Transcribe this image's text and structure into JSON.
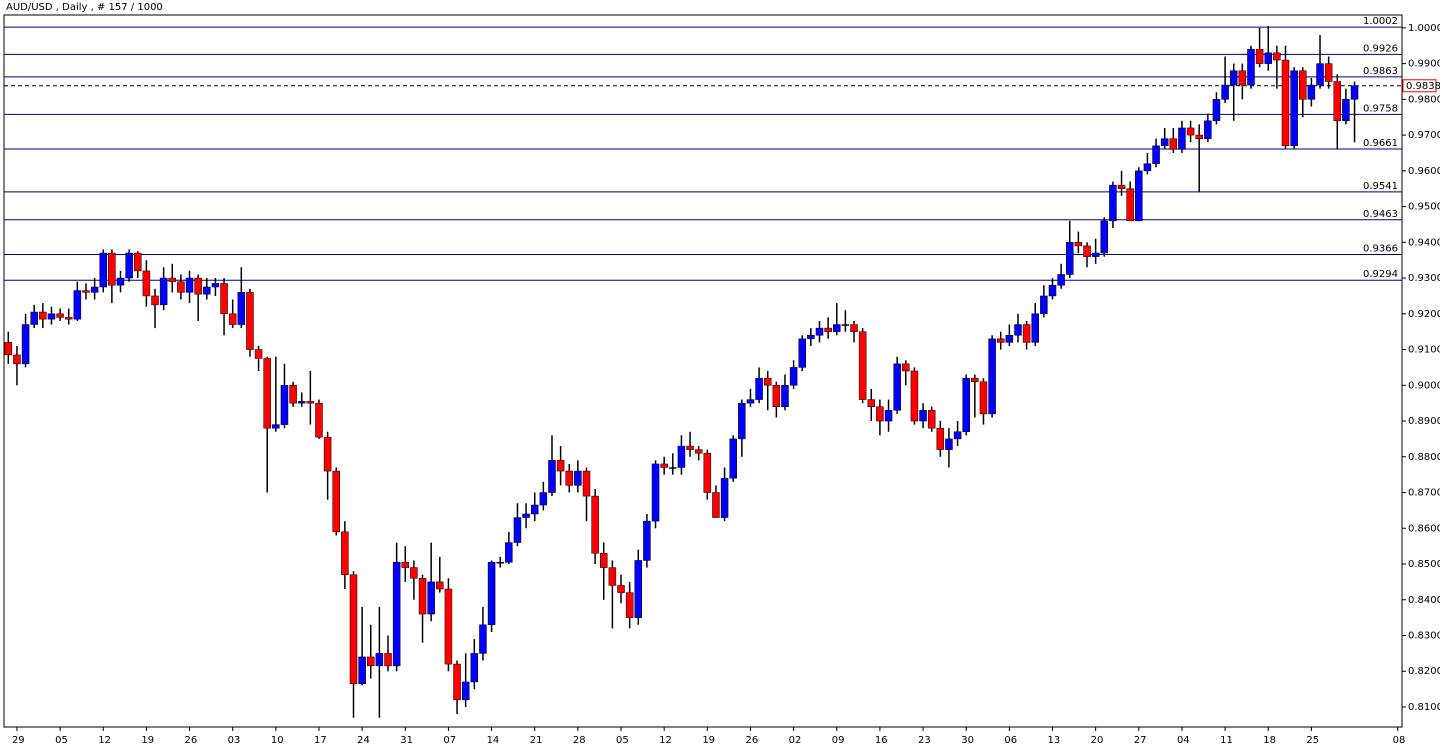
{
  "chart_data": {
    "type": "candlestick",
    "title": "AUD/USD , Daily , # 157 / 1000",
    "categories": [
      null,
      "29",
      null,
      null,
      null,
      null,
      "05",
      null,
      null,
      null,
      null,
      "12",
      null,
      null,
      null,
      null,
      "19",
      null,
      null,
      null,
      null,
      "26",
      null,
      null,
      null,
      null,
      "03",
      null,
      null,
      null,
      null,
      "10",
      null,
      null,
      null,
      null,
      "17",
      null,
      null,
      null,
      null,
      "24",
      null,
      null,
      null,
      null,
      "31",
      null,
      null,
      null,
      null,
      "07",
      null,
      null,
      null,
      null,
      "14",
      null,
      null,
      null,
      null,
      "21",
      null,
      null,
      null,
      null,
      "28",
      null,
      null,
      null,
      null,
      "05",
      null,
      null,
      null,
      null,
      "12",
      null,
      null,
      null,
      null,
      "19",
      null,
      null,
      null,
      null,
      "26",
      null,
      null,
      null,
      null,
      "02",
      null,
      null,
      null,
      null,
      "09",
      null,
      null,
      null,
      null,
      "16",
      null,
      null,
      null,
      null,
      "23",
      null,
      null,
      null,
      null,
      "30",
      null,
      null,
      null,
      null,
      "06",
      null,
      null,
      null,
      null,
      "13",
      null,
      null,
      null,
      null,
      "20",
      null,
      null,
      null,
      null,
      "27",
      null,
      null,
      null,
      null,
      "04",
      null,
      null,
      null,
      null,
      "11",
      null,
      null,
      null,
      null,
      "18",
      null,
      null,
      null,
      null,
      "25",
      null,
      null,
      null,
      null,
      null,
      null,
      null,
      null,
      null,
      "08"
    ],
    "open": [
      0.912,
      0.9085,
      0.906,
      0.917,
      0.9205,
      0.9185,
      0.92,
      0.919,
      0.9185,
      0.9265,
      0.926,
      0.9275,
      0.937,
      0.928,
      0.93,
      0.937,
      0.932,
      0.925,
      0.9225,
      0.93,
      0.929,
      0.926,
      0.93,
      0.9255,
      0.9275,
      0.9285,
      0.92,
      0.917,
      0.926,
      0.91,
      0.9075,
      0.888,
      0.889,
      0.9,
      0.895,
      0.8955,
      0.895,
      0.8855,
      0.876,
      0.859,
      0.847,
      0.8165,
      0.824,
      0.8215,
      0.825,
      0.8215,
      0.8505,
      0.849,
      0.846,
      0.836,
      0.845,
      0.843,
      0.822,
      0.812,
      0.817,
      0.825,
      0.833,
      0.8505,
      0.8505,
      0.856,
      0.863,
      0.864,
      0.8665,
      0.87,
      0.879,
      0.876,
      0.872,
      0.876,
      0.869,
      0.853,
      0.849,
      0.844,
      0.842,
      0.835,
      0.851,
      0.862,
      0.878,
      0.877,
      0.877,
      0.883,
      0.882,
      0.881,
      0.87,
      0.863,
      0.874,
      0.885,
      0.895,
      0.896,
      0.902,
      0.9,
      0.894,
      0.9,
      0.905,
      0.913,
      0.914,
      0.916,
      0.915,
      0.917,
      0.917,
      0.915,
      0.896,
      0.894,
      0.89,
      0.893,
      0.906,
      0.904,
      0.89,
      0.893,
      0.888,
      0.882,
      0.885,
      0.887,
      0.902,
      0.901,
      0.892,
      0.913,
      0.912,
      0.914,
      0.917,
      0.912,
      0.92,
      0.925,
      0.928,
      0.931,
      0.94,
      0.939,
      0.936,
      0.937,
      0.946,
      0.956,
      0.955,
      0.946,
      0.96,
      0.962,
      0.967,
      0.969,
      0.966,
      0.972,
      0.97,
      0.969,
      0.974,
      0.98,
      0.984,
      0.988,
      0.984,
      0.994,
      0.99,
      0.993,
      0.991,
      0.967,
      0.988,
      0.98,
      0.984,
      0.99,
      0.985,
      0.974,
      0.98,
      null,
      null,
      null,
      null,
      null
    ],
    "high": [
      0.915,
      0.911,
      0.92,
      0.9225,
      0.923,
      0.922,
      0.9215,
      0.9215,
      0.929,
      0.9285,
      0.93,
      0.938,
      0.938,
      0.932,
      0.938,
      0.9375,
      0.935,
      0.927,
      0.933,
      0.934,
      0.931,
      0.932,
      0.931,
      0.93,
      0.93,
      0.93,
      0.924,
      0.933,
      0.927,
      0.911,
      0.908,
      0.908,
      0.906,
      0.901,
      0.898,
      0.904,
      0.896,
      0.887,
      0.877,
      0.862,
      0.848,
      0.838,
      0.833,
      0.838,
      0.83,
      0.856,
      0.855,
      0.851,
      0.847,
      0.856,
      0.852,
      0.846,
      0.823,
      0.825,
      0.829,
      0.838,
      0.851,
      0.852,
      0.859,
      0.867,
      0.867,
      0.87,
      0.873,
      0.886,
      0.883,
      0.878,
      0.879,
      0.877,
      0.871,
      0.856,
      0.851,
      0.847,
      0.845,
      0.854,
      0.864,
      0.879,
      0.88,
      0.881,
      0.886,
      0.887,
      0.883,
      0.882,
      0.872,
      0.877,
      0.886,
      0.896,
      0.899,
      0.905,
      0.904,
      0.901,
      0.903,
      0.907,
      0.914,
      0.916,
      0.918,
      0.919,
      0.923,
      0.921,
      0.918,
      0.916,
      0.899,
      0.896,
      0.896,
      0.908,
      0.907,
      0.905,
      0.895,
      0.894,
      0.89,
      0.888,
      0.89,
      0.903,
      0.903,
      0.902,
      0.914,
      0.915,
      0.917,
      0.92,
      0.918,
      0.923,
      0.928,
      0.93,
      0.934,
      0.946,
      0.943,
      0.94,
      0.941,
      0.947,
      0.957,
      0.96,
      0.957,
      0.961,
      0.965,
      0.969,
      0.972,
      0.972,
      0.974,
      0.974,
      0.973,
      0.976,
      0.982,
      0.992,
      0.99,
      0.99,
      0.995,
      1.0,
      1.0005,
      0.995,
      0.995,
      0.989,
      0.989,
      0.986,
      0.998,
      0.992,
      0.987,
      0.983,
      0.985,
      null,
      null,
      null,
      null,
      null
    ],
    "low": [
      0.906,
      0.9,
      0.905,
      0.916,
      0.916,
      0.917,
      0.918,
      0.917,
      0.918,
      0.924,
      0.924,
      0.926,
      0.923,
      0.926,
      0.929,
      0.93,
      0.922,
      0.916,
      0.921,
      0.926,
      0.924,
      0.923,
      0.918,
      0.924,
      0.925,
      0.914,
      0.916,
      0.916,
      0.908,
      0.904,
      0.87,
      0.887,
      0.888,
      0.894,
      0.894,
      0.889,
      0.885,
      0.868,
      0.858,
      0.843,
      0.807,
      0.816,
      0.818,
      0.807,
      0.82,
      0.82,
      0.845,
      0.84,
      0.828,
      0.834,
      0.842,
      0.82,
      0.808,
      0.81,
      0.815,
      0.823,
      0.831,
      0.849,
      0.85,
      0.855,
      0.86,
      0.862,
      0.865,
      0.869,
      0.872,
      0.87,
      0.87,
      0.862,
      0.85,
      0.84,
      0.832,
      0.839,
      0.832,
      0.833,
      0.849,
      0.86,
      0.875,
      0.875,
      0.875,
      0.88,
      0.879,
      0.868,
      0.863,
      0.862,
      0.873,
      0.88,
      0.894,
      0.895,
      0.893,
      0.891,
      0.893,
      0.899,
      0.904,
      0.911,
      0.912,
      0.913,
      0.914,
      0.915,
      0.912,
      0.895,
      0.89,
      0.886,
      0.887,
      0.892,
      0.9,
      0.889,
      0.888,
      0.887,
      0.88,
      0.877,
      0.883,
      0.886,
      0.891,
      0.889,
      0.891,
      0.91,
      0.911,
      0.912,
      0.91,
      0.911,
      0.919,
      0.924,
      0.927,
      0.93,
      0.937,
      0.933,
      0.934,
      0.936,
      0.944,
      0.953,
      0.946,
      0.946,
      0.959,
      0.961,
      0.966,
      0.965,
      0.965,
      0.968,
      0.954,
      0.968,
      0.973,
      0.979,
      0.974,
      0.98,
      0.983,
      0.989,
      0.988,
      0.983,
      0.966,
      0.966,
      0.975,
      0.978,
      0.983,
      0.983,
      0.966,
      0.973,
      0.968,
      null,
      null,
      null,
      null,
      null
    ],
    "close": [
      0.9085,
      0.906,
      0.917,
      0.9205,
      0.9185,
      0.92,
      0.919,
      0.9185,
      0.9265,
      0.926,
      0.9275,
      0.937,
      0.928,
      0.93,
      0.937,
      0.932,
      0.925,
      0.9225,
      0.93,
      0.929,
      0.926,
      0.93,
      0.9255,
      0.9275,
      0.9285,
      0.92,
      0.917,
      0.926,
      0.91,
      0.9075,
      0.888,
      0.889,
      0.9,
      0.895,
      0.8955,
      0.895,
      0.8855,
      0.876,
      0.859,
      0.847,
      0.8165,
      0.824,
      0.8215,
      0.825,
      0.8215,
      0.8505,
      0.849,
      0.846,
      0.836,
      0.845,
      0.843,
      0.822,
      0.812,
      0.817,
      0.825,
      0.833,
      0.8505,
      0.8505,
      0.856,
      0.863,
      0.864,
      0.8665,
      0.87,
      0.879,
      0.876,
      0.872,
      0.876,
      0.869,
      0.853,
      0.849,
      0.844,
      0.842,
      0.835,
      0.851,
      0.862,
      0.878,
      0.877,
      0.877,
      0.883,
      0.882,
      0.881,
      0.87,
      0.863,
      0.874,
      0.885,
      0.895,
      0.896,
      0.902,
      0.9,
      0.894,
      0.9,
      0.905,
      0.913,
      0.914,
      0.916,
      0.915,
      0.917,
      0.917,
      0.915,
      0.896,
      0.894,
      0.89,
      0.893,
      0.906,
      0.904,
      0.89,
      0.893,
      0.888,
      0.882,
      0.885,
      0.887,
      0.902,
      0.901,
      0.892,
      0.913,
      0.912,
      0.914,
      0.917,
      0.912,
      0.92,
      0.925,
      0.928,
      0.931,
      0.94,
      0.939,
      0.936,
      0.937,
      0.946,
      0.956,
      0.955,
      0.946,
      0.96,
      0.962,
      0.967,
      0.969,
      0.966,
      0.972,
      0.97,
      0.969,
      0.974,
      0.98,
      0.984,
      0.988,
      0.984,
      0.994,
      0.99,
      0.993,
      0.991,
      0.967,
      0.988,
      0.98,
      0.984,
      0.99,
      0.985,
      0.974,
      0.98,
      0.9838,
      null,
      null,
      null,
      null,
      null
    ],
    "up_color": "#0000ff",
    "down_color": "#ff0000",
    "wick_color": "#000000",
    "ylim": [
      0.8044,
      1.0036
    ],
    "yticks": [
      {
        "value": 0.81,
        "label": "0.8100"
      },
      {
        "value": 0.82,
        "label": "0.8200"
      },
      {
        "value": 0.83,
        "label": "0.8300"
      },
      {
        "value": 0.84,
        "label": "0.8400"
      },
      {
        "value": 0.85,
        "label": "0.8500"
      },
      {
        "value": 0.86,
        "label": "0.8600"
      },
      {
        "value": 0.87,
        "label": "0.8700"
      },
      {
        "value": 0.88,
        "label": "0.8800"
      },
      {
        "value": 0.89,
        "label": "0.8900"
      },
      {
        "value": 0.9,
        "label": "0.9000"
      },
      {
        "value": 0.91,
        "label": "0.9100"
      },
      {
        "value": 0.92,
        "label": "0.9200"
      },
      {
        "value": 0.93,
        "label": "0.9300"
      },
      {
        "value": 0.94,
        "label": "0.9400"
      },
      {
        "value": 0.95,
        "label": "0.9500"
      },
      {
        "value": 0.96,
        "label": "0.9600"
      },
      {
        "value": 0.97,
        "label": "0.9700"
      },
      {
        "value": 0.98,
        "label": "0.9800"
      },
      {
        "value": 0.99,
        "label": "0.9900"
      },
      {
        "value": 1.0,
        "label": "1.0000"
      }
    ],
    "levels": [
      1.0002,
      0.9926,
      0.9863,
      0.9758,
      0.9661,
      0.9541,
      0.9463,
      0.9366,
      0.9294
    ],
    "level_color": "#000080",
    "current_price": 0.9838,
    "current_price_color": "#ff0000"
  }
}
